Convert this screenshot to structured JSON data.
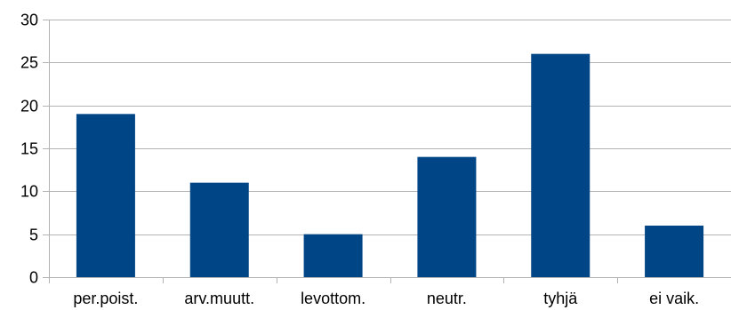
{
  "chart_data": {
    "type": "bar",
    "categories": [
      "per.poist.",
      "arv.muutt.",
      "levottom.",
      "neutr.",
      "tyhjä",
      "ei vaik."
    ],
    "values": [
      19,
      11,
      5,
      14,
      26,
      6
    ],
    "title": "",
    "xlabel": "",
    "ylabel": "",
    "ylim": [
      0,
      30
    ],
    "yticks": [
      0,
      5,
      10,
      15,
      20,
      25,
      30
    ],
    "ytick_labels": [
      "0",
      "5",
      "10",
      "15",
      "20",
      "25",
      "30"
    ],
    "grid": true,
    "legend": "none",
    "bar_color": "#004586",
    "grid_color": "#b3b3b3",
    "axis_color": "#b3b3b3"
  }
}
